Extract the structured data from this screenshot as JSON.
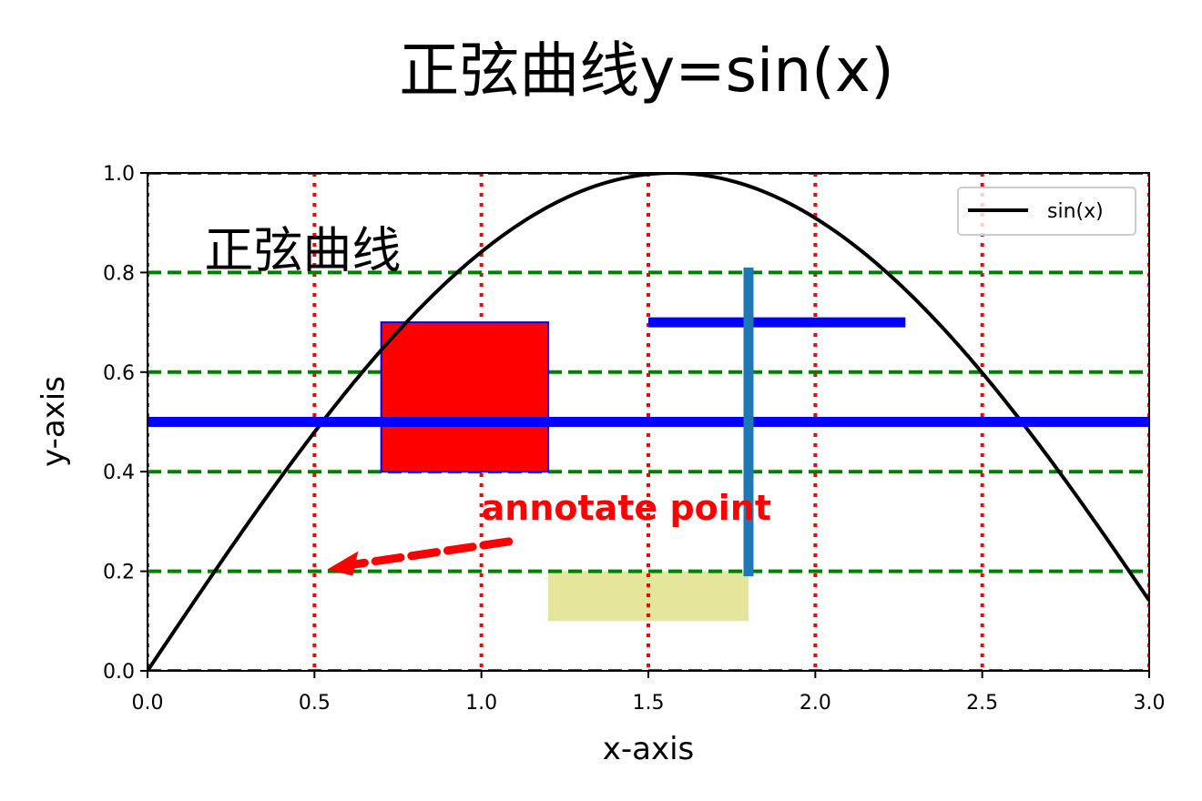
{
  "chart_data": {
    "type": "line",
    "title": "正弦曲线y=sin(x)",
    "xlabel": "x-axis",
    "ylabel": "y-axis",
    "xlim": [
      0.0,
      3.0
    ],
    "ylim": [
      0.0,
      1.0
    ],
    "xticks": [
      0.0,
      0.5,
      1.0,
      1.5,
      2.0,
      2.5,
      3.0
    ],
    "xtick_labels": [
      "0.0",
      "0.5",
      "1.0",
      "1.5",
      "2.0",
      "2.5",
      "3.0"
    ],
    "yticks": [
      0.0,
      0.2,
      0.4,
      0.6,
      0.8,
      1.0
    ],
    "ytick_labels": [
      "0.0",
      "0.2",
      "0.4",
      "0.6",
      "0.8",
      "1.0"
    ],
    "grid": {
      "x": {
        "color": "#ff0000",
        "style": "dotted"
      },
      "y": {
        "color": "#008000",
        "style": "dashed"
      }
    },
    "legend": {
      "placement": "upper right",
      "entries": [
        "sin(x)"
      ]
    },
    "series": [
      {
        "name": "sin(x)",
        "color": "#000000",
        "function": "sin",
        "x": [
          0.0,
          0.25,
          0.5,
          0.75,
          1.0,
          1.25,
          1.5,
          1.75,
          2.0,
          2.25,
          2.5,
          2.75,
          3.0
        ],
        "y": [
          0.0,
          0.247,
          0.479,
          0.682,
          0.841,
          0.949,
          0.997,
          0.984,
          0.909,
          0.778,
          0.598,
          0.382,
          0.141
        ]
      }
    ],
    "text": {
      "label": "正弦曲线",
      "x": 0.17,
      "y": 0.8
    },
    "annotation": {
      "label": "annotate point",
      "xy": [
        0.5,
        0.2
      ],
      "xytext": [
        1.0,
        0.3
      ],
      "color": "#ff0000"
    },
    "hline": {
      "y": 0.5,
      "color": "#0000ff"
    },
    "hline_segment": {
      "y": 0.7,
      "x_from": 1.5,
      "x_to": 2.27,
      "color": "#0000ff"
    },
    "vline_segment": {
      "x": 1.8,
      "y_from": 0.19,
      "y_to": 0.81,
      "color": "#1f77b4"
    },
    "rectangle": {
      "x": 0.7,
      "y": 0.4,
      "width": 0.5,
      "height": 0.3,
      "face_color": "#ff0000",
      "edge_color": "#0000ff"
    },
    "band": {
      "x_from": 1.2,
      "x_to": 1.8,
      "y_from": 0.1,
      "y_to": 0.2,
      "color": "#e4e69b"
    }
  }
}
